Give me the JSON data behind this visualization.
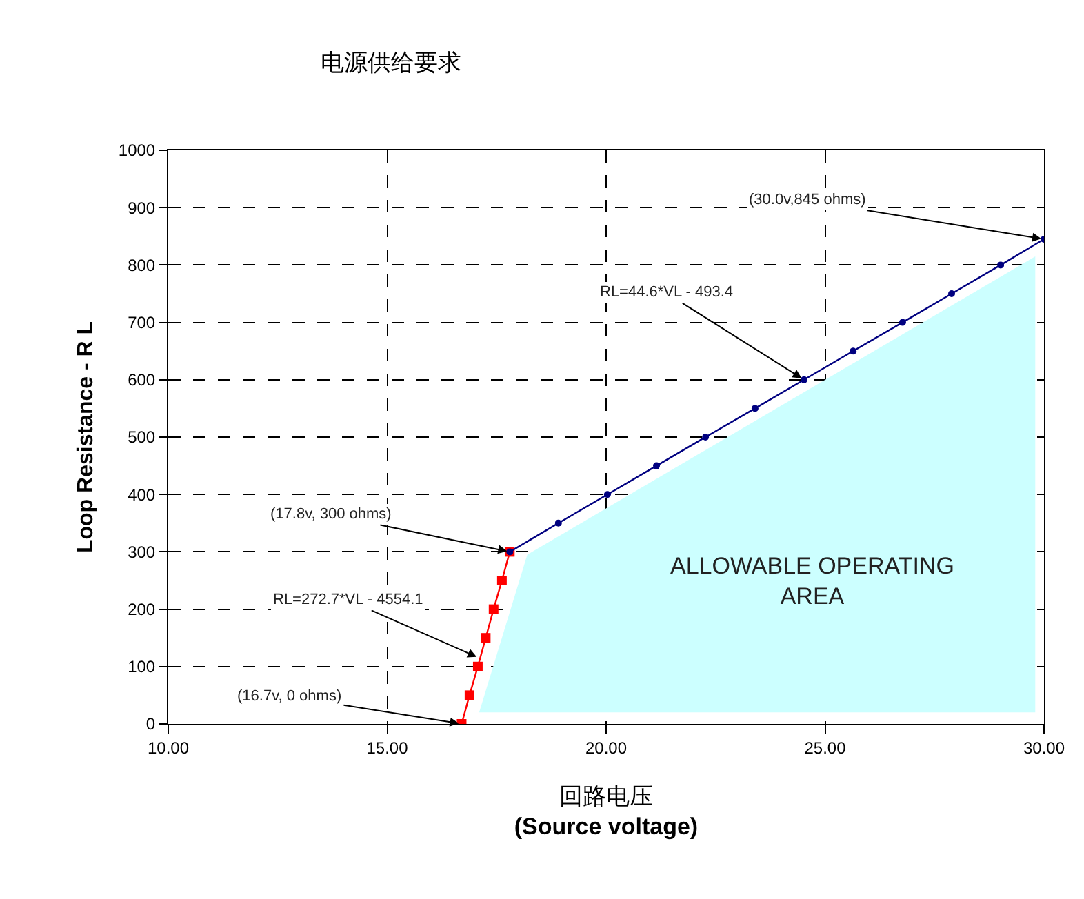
{
  "chart_data": {
    "type": "line",
    "title": "电源供给要求",
    "xlabel": "回路电压\n(Source voltage)",
    "ylabel": "Loop Resistance - R L",
    "xlim": [
      10,
      30
    ],
    "xticks": [
      {
        "value": 10,
        "label": "10.00"
      },
      {
        "value": 15,
        "label": "15.00"
      },
      {
        "value": 20,
        "label": "20.00"
      },
      {
        "value": 25,
        "label": "25.00"
      },
      {
        "value": 30,
        "label": "30.00"
      }
    ],
    "ylim": [
      0,
      1000
    ],
    "yticks": [
      0,
      100,
      200,
      300,
      400,
      500,
      600,
      700,
      800,
      900,
      1000
    ],
    "grid": true,
    "line_style": "solid",
    "series": [
      {
        "type": "area",
        "color": "#ccffff",
        "x": [
          17.1,
          18.2,
          29.8,
          29.8
        ],
        "values": [
          20,
          295,
          815,
          20
        ]
      },
      {
        "color": "#ff0000",
        "marker": "square",
        "x": [
          16.7,
          16.88,
          17.07,
          17.25,
          17.43,
          17.62,
          17.8
        ],
        "values": [
          0,
          50,
          100,
          150,
          200,
          250,
          300
        ]
      },
      {
        "color": "#000080",
        "marker": "circle",
        "x": [
          17.8,
          18.91,
          20.03,
          21.15,
          22.27,
          23.4,
          24.52,
          25.64,
          26.77,
          27.89,
          29.01,
          30
        ],
        "values": [
          300,
          350,
          400,
          450,
          500,
          550,
          600,
          650,
          700,
          750,
          800,
          845
        ]
      }
    ],
    "annotations": [
      {
        "text": "(30.0v,845 ohms)",
        "x": 30,
        "y": 845
      },
      {
        "text": "RL=44.6*VL - 493.4",
        "x": 24.52,
        "y": 600
      },
      {
        "text": "(17.8v, 300 ohms)",
        "x": 17.8,
        "y": 300
      },
      {
        "text": "RL=272.7*VL - 4554.1",
        "x": 17.1,
        "y": 115
      },
      {
        "text": "(16.7v, 0 ohms)",
        "x": 16.7,
        "y": 0
      },
      "ALLOWABLE OPERATING\nAREA"
    ]
  }
}
